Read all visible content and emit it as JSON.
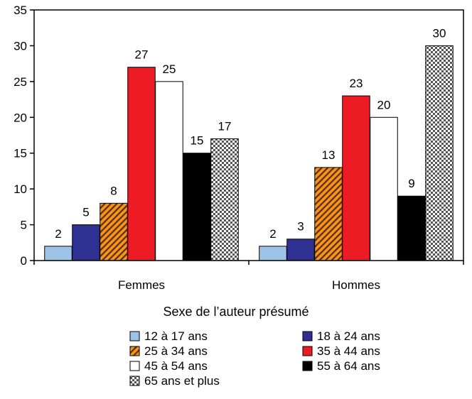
{
  "chart_data": {
    "type": "bar",
    "categories": [
      "Femmes",
      "Hommes"
    ],
    "xlabel": "Sexe de l’auteur présumé",
    "ylabel": "",
    "ylim": [
      0,
      35
    ],
    "yticks": [
      0,
      5,
      10,
      15,
      20,
      25,
      30,
      35
    ],
    "grid": false,
    "legend_position": "bottom",
    "series": [
      {
        "name": "12 à 17 ans",
        "values": [
          2,
          2
        ],
        "color": "#9dc3e6",
        "pattern": "solid"
      },
      {
        "name": "18 à 24 ans",
        "values": [
          5,
          3
        ],
        "color": "#2e3192",
        "pattern": "solid"
      },
      {
        "name": "25 à 34 ans",
        "values": [
          8,
          13
        ],
        "color": "#f7941d",
        "pattern": "diagonal-hatch"
      },
      {
        "name": "35 à 44 ans",
        "values": [
          27,
          23
        ],
        "color": "#ed1c24",
        "pattern": "solid"
      },
      {
        "name": "45 à 54 ans",
        "values": [
          25,
          20
        ],
        "color": "#ffffff",
        "pattern": "solid"
      },
      {
        "name": "55 à 64 ans",
        "values": [
          15,
          9
        ],
        "color": "#000000",
        "pattern": "solid"
      },
      {
        "name": "65 ans et plus",
        "values": [
          17,
          30
        ],
        "color": "#888888",
        "pattern": "checker"
      }
    ]
  }
}
